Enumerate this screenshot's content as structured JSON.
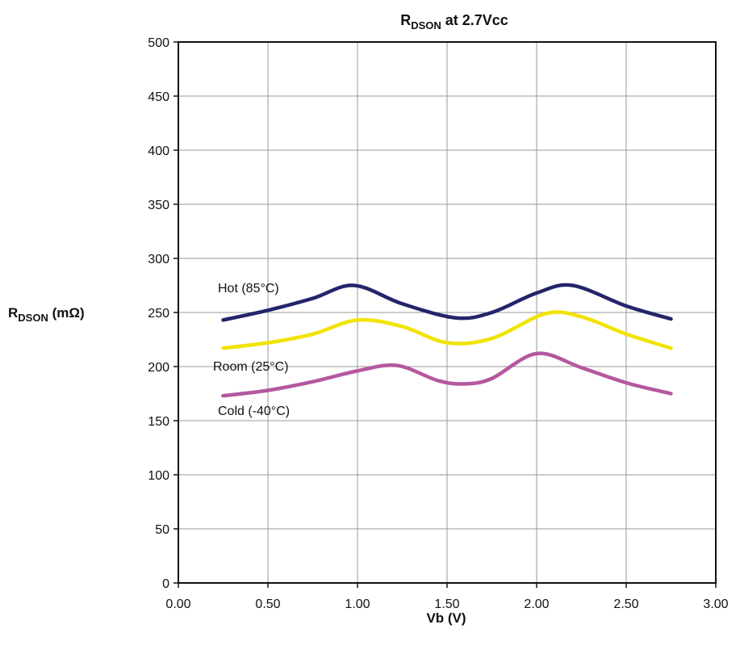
{
  "chart_data": {
    "type": "line",
    "title_main": "R",
    "title_sub": "DSON",
    "title_rest": " at 2.7Vcc",
    "ylabel_main": "R",
    "ylabel_sub": "DSON",
    "ylabel_rest": " (mΩ)",
    "xlabel": "Vb (V)",
    "xlim": [
      0,
      3
    ],
    "ylim": [
      0,
      500
    ],
    "xticks": [
      "0.00",
      "0.50",
      "1.00",
      "1.50",
      "2.00",
      "2.50",
      "3.00"
    ],
    "yticks": [
      "0",
      "50",
      "100",
      "150",
      "200",
      "250",
      "300",
      "350",
      "400",
      "450",
      "500"
    ],
    "grid": true,
    "series": [
      {
        "name": "Hot (85°C)",
        "color": "#23256b",
        "x": [
          0.25,
          0.5,
          0.75,
          0.98,
          1.25,
          1.55,
          1.75,
          2.0,
          2.2,
          2.5,
          2.75
        ],
        "y": [
          243,
          252,
          263,
          275,
          258,
          245,
          250,
          268,
          275,
          256,
          244
        ]
      },
      {
        "name": "Room (25°C)",
        "color": "#f2e300",
        "x": [
          0.25,
          0.5,
          0.75,
          1.0,
          1.25,
          1.5,
          1.75,
          2.05,
          2.25,
          2.5,
          2.75
        ],
        "y": [
          217,
          222,
          230,
          243,
          237,
          222,
          226,
          249,
          246,
          230,
          217
        ]
      },
      {
        "name": "Cold (-40°C)",
        "color": "#b4589f",
        "x": [
          0.25,
          0.5,
          0.75,
          1.0,
          1.22,
          1.45,
          1.6,
          1.75,
          2.0,
          2.25,
          2.5,
          2.75
        ],
        "y": [
          173,
          178,
          186,
          196,
          201,
          187,
          184,
          189,
          212,
          199,
          185,
          175
        ]
      }
    ]
  }
}
